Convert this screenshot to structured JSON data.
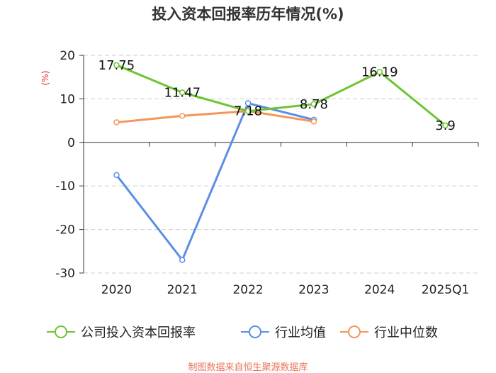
{
  "title": "投入资本回报率历年情况(%)",
  "footer": "制图数据来自恒生聚源数据库",
  "chart_data": {
    "type": "line",
    "title": "投入资本回报率历年情况(%)",
    "ylabel": "(%)",
    "categories": [
      "2020",
      "2021",
      "2022",
      "2023",
      "2024",
      "2025Q1"
    ],
    "y_ticks": [
      "20",
      "10",
      "0",
      "-10",
      "-20",
      "-30"
    ],
    "ylim": [
      -30,
      20
    ],
    "grid": true,
    "legend_position": "bottom",
    "series": [
      {
        "name": "公司投入资本回报率",
        "color": "#6cc531",
        "values": [
          17.75,
          11.47,
          7.18,
          8.78,
          16.19,
          3.9
        ],
        "labels": [
          "17.75",
          "11.47",
          "7.18",
          "8.78",
          "16.19",
          "3.9"
        ]
      },
      {
        "name": "行业均值",
        "color": "#5b8ee6",
        "values": [
          -7.5,
          -27.0,
          9.0,
          5.2,
          null,
          null
        ]
      },
      {
        "name": "行业中位数",
        "color": "#f5955a",
        "values": [
          4.6,
          6.1,
          7.2,
          4.8,
          null,
          null
        ]
      }
    ]
  }
}
